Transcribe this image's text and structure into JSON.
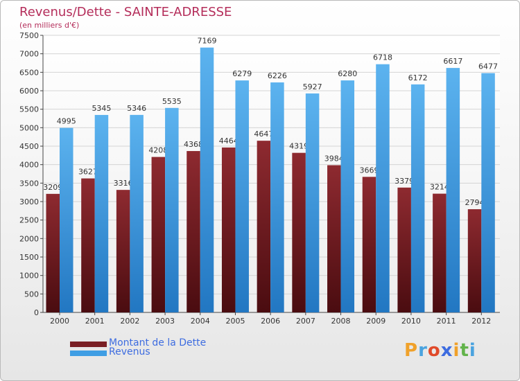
{
  "title": "Revenus/Dette - SAINTE-ADRESSE",
  "subtitle": "(en milliers d'€)",
  "logo_text": "Proxiti",
  "colors": {
    "title": "#b42d5a",
    "debt_bar": "#7a1f24",
    "revenue_bar": "#3f9ee4",
    "legend_text": "#3d6ce0"
  },
  "chart_data": {
    "type": "bar",
    "categories": [
      "2000",
      "2001",
      "2002",
      "2003",
      "2004",
      "2005",
      "2006",
      "2007",
      "2008",
      "2009",
      "2010",
      "2011",
      "2012"
    ],
    "series": [
      {
        "name": "Montant de la Dette",
        "color": "#7a1f24",
        "values": [
          3209,
          3627,
          3316,
          4208,
          4368,
          4464,
          4647,
          4319,
          3984,
          3669,
          3379,
          3214,
          2794
        ]
      },
      {
        "name": "Revenus",
        "color": "#3f9ee4",
        "values": [
          4995,
          5345,
          5346,
          5535,
          7169,
          6279,
          6226,
          5927,
          6280,
          6718,
          6172,
          6617,
          6477
        ]
      }
    ],
    "ylim": [
      0,
      7500
    ],
    "yticks": [
      0,
      500,
      1000,
      1500,
      2000,
      2500,
      3000,
      3500,
      4000,
      4500,
      5000,
      5500,
      6000,
      6500,
      7000,
      7500
    ],
    "grid": true,
    "legend_position": "bottom-left"
  }
}
